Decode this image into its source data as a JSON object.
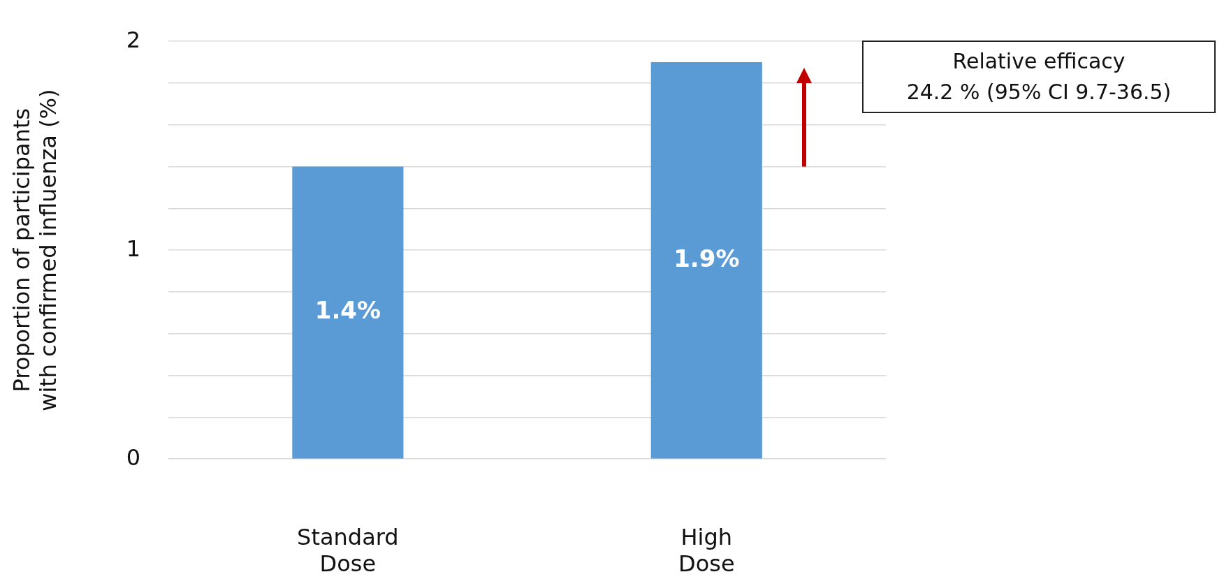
{
  "chart_data": {
    "type": "bar",
    "ylabel": "Proportion of participants with confirmed influenza (%)",
    "categories": [
      "Standard Dose",
      "High Dose"
    ],
    "values": [
      1.4,
      1.9
    ],
    "color": "#5b9bd5",
    "value_labels": [
      "1.4%",
      "1.9%"
    ],
    "ylim": [
      0,
      2
    ],
    "yticks": [
      0,
      {
        "value": 0.2,
        "label": null
      },
      {
        "value": 0.4,
        "label": null
      },
      {
        "value": 0.6,
        "label": null
      },
      {
        "value": 0.8,
        "label": null
      },
      1,
      {
        "value": 1.2,
        "label": null
      },
      {
        "value": 1.4,
        "label": null
      },
      {
        "value": 1.6,
        "label": null
      },
      {
        "value": 1.8,
        "label": null
      },
      2
    ],
    "grid": "y",
    "annotations": [
      "Relative efficacy",
      "24.2 % (95% CI 9.7-36.5)"
    ]
  }
}
